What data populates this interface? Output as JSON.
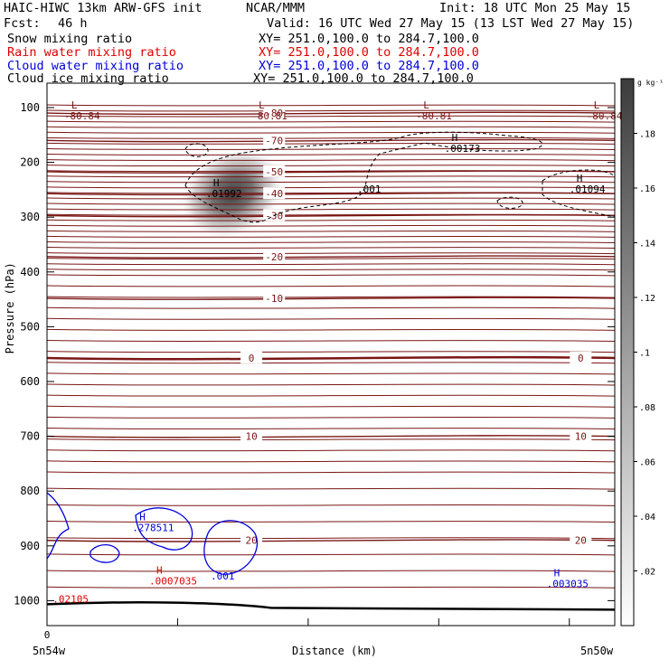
{
  "header": {
    "title": "HAIC-HIWC 13km ARW-GFS init",
    "org": "NCAR/MMM",
    "init": "Init: 18 UTC Mon 25 May 15",
    "fcst_label": "Fcst:",
    "fcst_value": "46 h",
    "valid": "Valid: 16 UTC Wed 27 May 15 (13 LST Wed 27 May 15)"
  },
  "fields": [
    {
      "label": "Snow mixing ratio",
      "color": "#000000",
      "xy": "XY= 251.0,100.0 to 284.7,100.0"
    },
    {
      "label": "Rain water mixing ratio",
      "color": "#e00000",
      "xy": "XY= 251.0,100.0 to 284.7,100.0"
    },
    {
      "label": "Cloud water mixing ratio",
      "color": "#0000dd",
      "xy": "XY= 251.0,100.0 to 284.7,100.0"
    },
    {
      "label": "Cloud ice mixing ratio",
      "color": "#000000",
      "xy": "XY= 251.0,100.0 to 284.7,100.0"
    }
  ],
  "colors": {
    "temperature": "#7a1616",
    "rain": "#e00000",
    "cloud_water": "#0000dd",
    "cloud_ice": "#000000",
    "terrain": "#000000"
  },
  "chart_data": {
    "type": "heatmap",
    "xlabel": "Distance (km)",
    "ylabel": "Pressure (hPa)",
    "x_ticks": [
      "0"
    ],
    "x_end_labels": {
      "left": "5n54w",
      "right": "5n50w"
    },
    "y_ticks": [
      100,
      200,
      300,
      400,
      500,
      600,
      700,
      800,
      900,
      1000
    ],
    "ylim": [
      1050,
      60
    ],
    "xlim": [
      0,
      100
    ],
    "colorbar": {
      "unit": "g kg⁻¹",
      "ticks": [
        ".02",
        ".04",
        ".06",
        ".08",
        ".1",
        ".12",
        ".14",
        ".16",
        ".18"
      ],
      "max": 0.2
    },
    "snow_max": {
      "x": 32,
      "p": 280,
      "value": 0.19
    },
    "temperature_contours": [
      {
        "label": "-80",
        "p": 110
      },
      {
        "label": "-70",
        "p": 160
      },
      {
        "label": "-50",
        "p": 217
      },
      {
        "label": "-40",
        "p": 257
      },
      {
        "label": "-30",
        "p": 297
      },
      {
        "label": "-20",
        "p": 372
      },
      {
        "label": "-10",
        "p": 448
      },
      {
        "label": "0",
        "p": 557
      },
      {
        "label": "10",
        "p": 700
      },
      {
        "label": "20",
        "p": 890
      }
    ],
    "minmax_labels": [
      {
        "letter": "L",
        "text": "-80.84",
        "x": 3,
        "p": 108,
        "series": "temperature"
      },
      {
        "letter": "L",
        "text": "-80.81",
        "x": 36,
        "p": 108,
        "series": "temperature"
      },
      {
        "letter": "L",
        "text": "-80.81",
        "x": 65,
        "p": 108,
        "series": "temperature"
      },
      {
        "letter": "L",
        "text": "-80.84",
        "x": 95,
        "p": 108,
        "series": "temperature"
      },
      {
        "letter": "H",
        "text": ".00173",
        "x": 70,
        "p": 168,
        "series": "cloud_ice"
      },
      {
        "letter": "H",
        "text": ".01094",
        "x": 92,
        "p": 242,
        "series": "cloud_ice"
      },
      {
        "letter": "H",
        "text": ".01992",
        "x": 28,
        "p": 250,
        "series": "cloud_ice"
      },
      {
        "letter": "H",
        "text": ".278511",
        "x": 15,
        "p": 860,
        "series": "cloud_water"
      },
      {
        "letter": "H",
        "text": ".0007035",
        "x": 18,
        "p": 957,
        "series": "rain"
      },
      {
        "letter": "H",
        "text": ".003035",
        "x": 88,
        "p": 962,
        "series": "cloud_water"
      },
      {
        "letter": "",
        "text": ".02105",
        "x": 1,
        "p": 990,
        "series": "rain"
      }
    ],
    "cloud_ice_contour_labels": [
      ".001"
    ],
    "cloud_water_contour_labels": [
      ".001"
    ]
  }
}
